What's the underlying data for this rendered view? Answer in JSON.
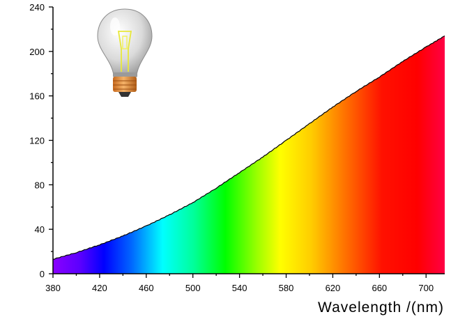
{
  "chart_data": {
    "type": "area",
    "title": "",
    "xlabel": "Wavelength /(nm)",
    "ylabel": "",
    "xlim": [
      380,
      716
    ],
    "ylim": [
      0,
      240
    ],
    "x_ticks": [
      380,
      420,
      460,
      500,
      540,
      580,
      620,
      660,
      700
    ],
    "y_ticks": [
      0,
      40,
      80,
      120,
      160,
      200,
      240
    ],
    "grid": false,
    "legend": "none",
    "fill": "visible-spectrum-gradient",
    "line_color": "#000000",
    "decoration_icon": "light-bulb-icon",
    "series": [
      {
        "x": [
          380,
          400,
          420,
          440,
          460,
          480,
          500,
          520,
          540,
          560,
          580,
          600,
          620,
          640,
          660,
          680,
          700,
          716
        ],
        "y": [
          13,
          19,
          26,
          34,
          43,
          53,
          64,
          77,
          91,
          105,
          120,
          135,
          150,
          164,
          177,
          191,
          204,
          214
        ]
      }
    ]
  }
}
